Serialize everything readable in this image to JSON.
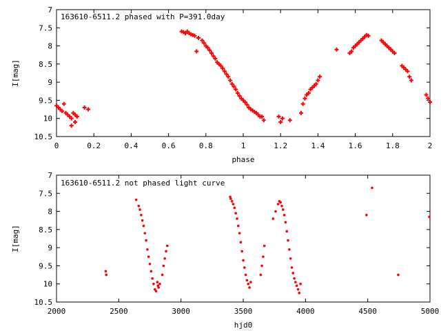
{
  "colors": {
    "points": "#ff0000",
    "axes": "#000000",
    "background": "#ffffff"
  },
  "chart_data": [
    {
      "type": "scatter",
      "title": "163610-6511.2 phased with P=391.0day",
      "xlabel": "phase",
      "ylabel": "I[mag]",
      "xlim": [
        0,
        2
      ],
      "ylim": [
        10.5,
        7
      ],
      "y_inverted": true,
      "xticks": [
        "0",
        "0.2",
        "0.4",
        "0.6",
        "0.8",
        "1",
        "1.2",
        "1.4",
        "1.6",
        "1.8",
        "2"
      ],
      "yticks": [
        "7",
        "7.5",
        "8",
        "8.5",
        "9",
        "9.5",
        "10",
        "10.5"
      ],
      "grid": false,
      "legend": "none",
      "marker": "plus",
      "series": [
        {
          "x": [
            0.0,
            0.01,
            0.02,
            0.03,
            0.04,
            0.05,
            0.06,
            0.07,
            0.08,
            0.09,
            0.1,
            0.11,
            0.15,
            0.17,
            0.08,
            0.1,
            0.67,
            0.68,
            0.69,
            0.7,
            0.71,
            0.72,
            0.73,
            0.74,
            0.76,
            0.75,
            0.78,
            0.79,
            0.8,
            0.81,
            0.82,
            0.83,
            0.84,
            0.85,
            0.86,
            0.87,
            0.88,
            0.89,
            0.9,
            0.91,
            0.92,
            0.93,
            0.94,
            0.95,
            0.96,
            0.97,
            0.98,
            0.99,
            1.0,
            1.01,
            1.02,
            1.03,
            1.04,
            1.05,
            1.06,
            1.07,
            1.08,
            1.09,
            1.1,
            1.11,
            1.19,
            1.2,
            1.21,
            1.25,
            1.31,
            1.32,
            1.33,
            1.34,
            1.35,
            1.36,
            1.37,
            1.38,
            1.39,
            1.4,
            1.41,
            1.5,
            1.57,
            1.58,
            1.59,
            1.6,
            1.61,
            1.62,
            1.63,
            1.64,
            1.65,
            1.66,
            1.67,
            1.74,
            1.75,
            1.76,
            1.77,
            1.78,
            1.79,
            1.8,
            1.81,
            1.85,
            1.86,
            1.87,
            1.88,
            1.89,
            1.9,
            1.98,
            1.99,
            2.0
          ],
          "y": [
            9.65,
            9.7,
            9.75,
            9.8,
            9.6,
            9.85,
            9.9,
            9.95,
            10.0,
            9.85,
            9.9,
            9.95,
            9.7,
            9.75,
            10.2,
            10.1,
            7.6,
            7.62,
            7.65,
            7.6,
            7.65,
            7.68,
            7.7,
            7.72,
            7.78,
            8.15,
            7.85,
            7.92,
            8.0,
            8.05,
            8.12,
            8.2,
            8.28,
            8.35,
            8.45,
            8.5,
            8.55,
            8.62,
            8.7,
            8.78,
            8.85,
            8.95,
            9.05,
            9.12,
            9.2,
            9.3,
            9.38,
            9.45,
            9.5,
            9.55,
            9.62,
            9.7,
            9.75,
            9.78,
            9.82,
            9.85,
            9.9,
            9.95,
            9.95,
            10.05,
            9.95,
            10.1,
            10.0,
            10.05,
            9.85,
            9.6,
            9.45,
            9.35,
            9.3,
            9.2,
            9.15,
            9.1,
            9.05,
            8.95,
            8.85,
            8.1,
            8.2,
            8.15,
            8.05,
            8.0,
            7.95,
            7.9,
            7.85,
            7.8,
            7.75,
            7.7,
            7.72,
            7.85,
            7.9,
            7.95,
            8.0,
            8.05,
            8.1,
            8.15,
            8.2,
            8.55,
            8.6,
            8.65,
            8.7,
            8.85,
            8.95,
            9.35,
            9.45,
            9.55
          ]
        }
      ]
    },
    {
      "type": "scatter",
      "title": "163610-6511.2 not phased light curve",
      "xlabel": "hjd0",
      "ylabel": "I[mag]",
      "xlim": [
        2000,
        5000
      ],
      "ylim": [
        10.5,
        7
      ],
      "y_inverted": true,
      "xticks": [
        "2000",
        "2500",
        "3000",
        "3500",
        "4000",
        "4500",
        "5000"
      ],
      "yticks": [
        "7",
        "7.5",
        "8",
        "8.5",
        "9",
        "9.5",
        "10",
        "10.5"
      ],
      "grid": false,
      "legend": "none",
      "marker": "dot",
      "series": [
        {
          "x": [
            2395,
            2400,
            2640,
            2660,
            2670,
            2680,
            2690,
            2700,
            2710,
            2720,
            2730,
            2740,
            2750,
            2760,
            2770,
            2780,
            2790,
            2800,
            2810,
            2815,
            2820,
            2830,
            2850,
            2860,
            2870,
            2880,
            2890,
            3395,
            3400,
            3410,
            3420,
            3430,
            3440,
            3450,
            3460,
            3470,
            3480,
            3490,
            3500,
            3510,
            3520,
            3530,
            3540,
            3550,
            3560,
            3640,
            3650,
            3660,
            3670,
            3740,
            3760,
            3780,
            3790,
            3800,
            3810,
            3820,
            3830,
            3840,
            3850,
            3860,
            3870,
            3880,
            3890,
            3900,
            3910,
            3920,
            3930,
            3940,
            3950,
            3960,
            4490,
            4535,
            4745,
            4995
          ],
          "y": [
            9.65,
            9.75,
            7.68,
            7.85,
            7.95,
            8.1,
            8.25,
            8.4,
            8.6,
            8.8,
            9.05,
            9.25,
            9.45,
            9.65,
            9.85,
            10.0,
            10.15,
            10.2,
            9.95,
            10.05,
            10.1,
            10.0,
            9.75,
            9.5,
            9.3,
            9.1,
            8.95,
            7.6,
            7.65,
            7.72,
            7.8,
            7.9,
            8.05,
            8.2,
            8.4,
            8.6,
            8.85,
            9.1,
            9.35,
            9.55,
            9.75,
            9.9,
            10.0,
            10.1,
            9.95,
            9.75,
            9.5,
            9.25,
            8.95,
            8.2,
            8.0,
            7.8,
            7.72,
            7.75,
            7.85,
            7.95,
            8.1,
            8.3,
            8.55,
            8.8,
            9.05,
            9.3,
            9.55,
            9.7,
            9.85,
            9.95,
            10.05,
            10.15,
            10.25,
            10.0,
            8.1,
            7.35,
            9.75,
            8.15
          ]
        }
      ]
    }
  ]
}
